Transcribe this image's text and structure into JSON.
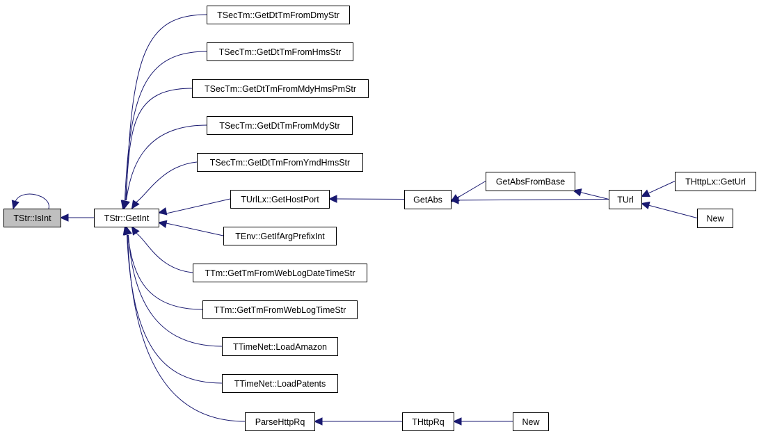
{
  "colors": {
    "edge": "#191970",
    "root_fill": "#bfbfbf",
    "node_fill": "#ffffff"
  },
  "nodes": [
    {
      "id": "isint",
      "label": "TStr::IsInt",
      "root": true
    },
    {
      "id": "getint",
      "label": "TStr::GetInt"
    },
    {
      "id": "dmy",
      "label": "TSecTm::GetDtTmFromDmyStr"
    },
    {
      "id": "hms",
      "label": "TSecTm::GetDtTmFromHmsStr"
    },
    {
      "id": "mdyhmspm",
      "label": "TSecTm::GetDtTmFromMdyHmsPmStr"
    },
    {
      "id": "mdy",
      "label": "TSecTm::GetDtTmFromMdyStr"
    },
    {
      "id": "ymdhms",
      "label": "TSecTm::GetDtTmFromYmdHmsStr"
    },
    {
      "id": "hostport",
      "label": "TUrlLx::GetHostPort"
    },
    {
      "id": "ifarg",
      "label": "TEnv::GetIfArgPrefixInt"
    },
    {
      "id": "weblogdt",
      "label": "TTm::GetTmFromWebLogDateTimeStr"
    },
    {
      "id": "weblogt",
      "label": "TTm::GetTmFromWebLogTimeStr"
    },
    {
      "id": "amazon",
      "label": "TTimeNet::LoadAmazon"
    },
    {
      "id": "patents",
      "label": "TTimeNet::LoadPatents"
    },
    {
      "id": "parsehttp",
      "label": "ParseHttpRq"
    },
    {
      "id": "thttprq",
      "label": "THttpRq"
    },
    {
      "id": "new1",
      "label": "New"
    },
    {
      "id": "getabs",
      "label": "GetAbs"
    },
    {
      "id": "getabsbase",
      "label": "GetAbsFromBase"
    },
    {
      "id": "turl",
      "label": "TUrl"
    },
    {
      "id": "geturl",
      "label": "THttpLx::GetUrl"
    },
    {
      "id": "new2",
      "label": "New"
    }
  ],
  "edges": [
    [
      "isint",
      "isint"
    ],
    [
      "getint",
      "isint"
    ],
    [
      "dmy",
      "getint"
    ],
    [
      "hms",
      "getint"
    ],
    [
      "mdyhmspm",
      "getint"
    ],
    [
      "mdy",
      "getint"
    ],
    [
      "ymdhms",
      "getint"
    ],
    [
      "hostport",
      "getint"
    ],
    [
      "ifarg",
      "getint"
    ],
    [
      "weblogdt",
      "getint"
    ],
    [
      "weblogt",
      "getint"
    ],
    [
      "amazon",
      "getint"
    ],
    [
      "patents",
      "getint"
    ],
    [
      "parsehttp",
      "getint"
    ],
    [
      "thttprq",
      "parsehttp"
    ],
    [
      "new1",
      "thttprq"
    ],
    [
      "getabs",
      "hostport"
    ],
    [
      "getabsbase",
      "getabs"
    ],
    [
      "turl",
      "getabs"
    ],
    [
      "turl",
      "getabsbase"
    ],
    [
      "geturl",
      "turl"
    ],
    [
      "new2",
      "turl"
    ]
  ]
}
